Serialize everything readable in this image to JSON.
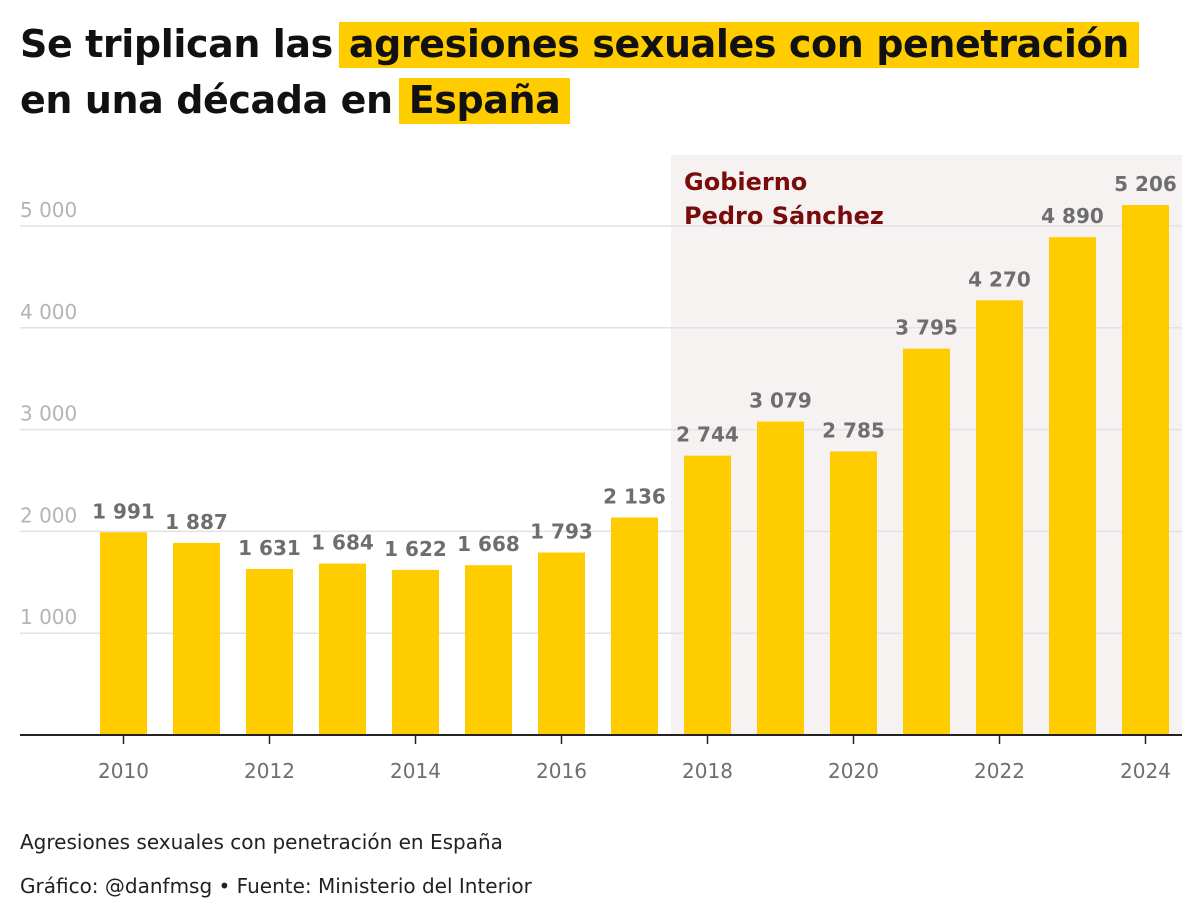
{
  "title": {
    "line1_plain": "Se triplican las",
    "line1_highlight": "agresiones sexuales con penetración",
    "line2_plain": "en una década en",
    "line2_highlight": "España",
    "highlight_color": "#ffcc00"
  },
  "annotation": {
    "line1": "Gobierno",
    "line2": "Pedro Sánchez",
    "color": "#7a0b0b",
    "shade_color": "#f6f2f1",
    "from_year": 2018,
    "to_year": 2024
  },
  "footer": {
    "subtitle": "Agresiones sexuales con penetración en España",
    "credit": "Gráfico: @danfmsg • Fuente: Ministerio del Interior"
  },
  "colors": {
    "bar": "#ffcc00",
    "value_label": "#6e6e6e",
    "tick_label": "#b4b4b4",
    "x_tick_label": "#6e6e6e",
    "grid": "#e2e2e2",
    "axis": "#222222"
  },
  "chart_data": {
    "type": "bar",
    "categories": [
      2010,
      2011,
      2012,
      2013,
      2014,
      2015,
      2016,
      2017,
      2018,
      2019,
      2020,
      2021,
      2022,
      2023,
      2024
    ],
    "values": [
      1991,
      1887,
      1631,
      1684,
      1622,
      1668,
      1793,
      2136,
      2744,
      3079,
      2785,
      3795,
      4270,
      4890,
      5206
    ],
    "value_labels": [
      "1 991",
      "1 887",
      "1 631",
      "1 684",
      "1 622",
      "1 668",
      "1 793",
      "2 136",
      "2 744",
      "3 079",
      "2 785",
      "3 795",
      "4 270",
      "4 890",
      "5 206"
    ],
    "x_ticks": [
      2010,
      2012,
      2014,
      2016,
      2018,
      2020,
      2022,
      2024
    ],
    "y_ticks": [
      1000,
      2000,
      3000,
      4000,
      5000
    ],
    "y_tick_labels": [
      "1 000",
      "2 000",
      "3 000",
      "4 000",
      "5 000"
    ],
    "ylim": [
      0,
      5700
    ],
    "grid": true,
    "title": "",
    "xlabel": "",
    "ylabel": ""
  }
}
